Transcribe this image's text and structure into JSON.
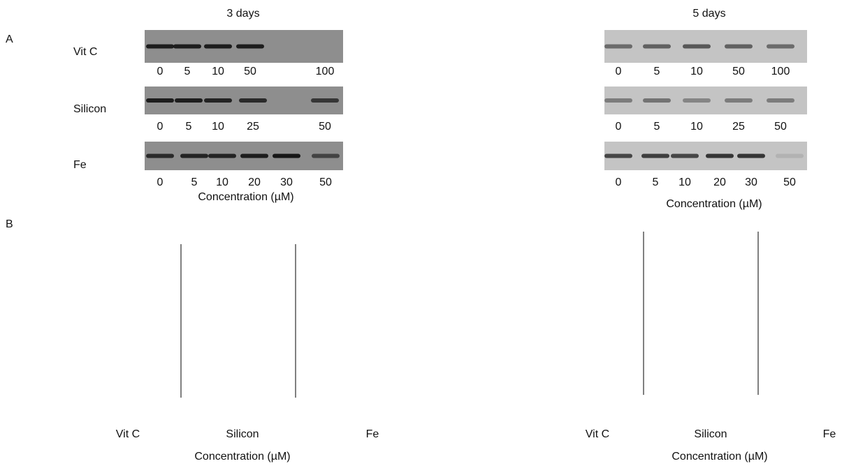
{
  "panel_a": {
    "label": "A",
    "columns": [
      {
        "title": "3 days",
        "blots": [
          {
            "label": "Vit C",
            "lanes": [
              0,
              5,
              10,
              50,
              100
            ]
          },
          {
            "label": "Silicon",
            "lanes": [
              0,
              5,
              10,
              25,
              50
            ]
          },
          {
            "label": "Fe",
            "lanes": [
              0,
              5,
              10,
              20,
              30,
              50
            ]
          }
        ],
        "x_label": "Concentration (µM)"
      },
      {
        "title": "5 days",
        "blots": [
          {
            "lanes": [
              0,
              5,
              10,
              50,
              100
            ]
          },
          {
            "lanes": [
              0,
              5,
              10,
              25,
              50
            ]
          },
          {
            "lanes": [
              0,
              5,
              10,
              20,
              30,
              50
            ]
          }
        ],
        "x_label": "Concentration (µM)"
      }
    ]
  },
  "panel_b": {
    "label": "B",
    "columns": [
      {
        "groups": [
          "Vit C",
          "Silicon",
          "Fe"
        ],
        "x_label": "Concentration (µM)"
      },
      {
        "groups": [
          "Vit C",
          "Silicon",
          "Fe"
        ],
        "x_label": "Concentration (µM)"
      }
    ]
  }
}
